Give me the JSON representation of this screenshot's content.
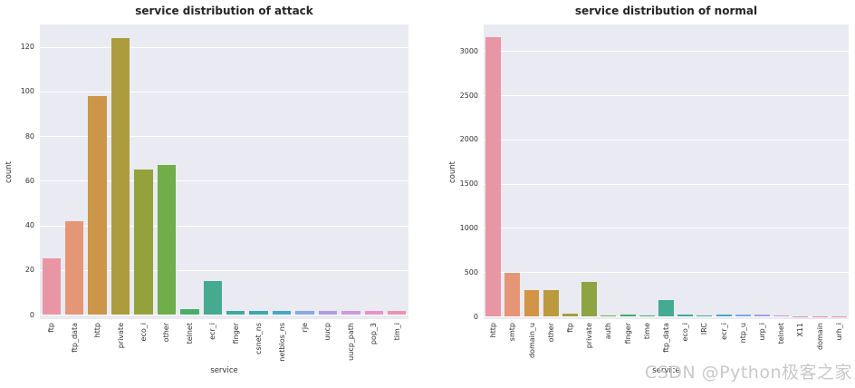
{
  "page": {
    "watermark": "CSDN @Python极客之家"
  },
  "chart_data": [
    {
      "type": "bar",
      "title": "service distribution of attack",
      "xlabel": "service",
      "ylabel": "count",
      "categories": [
        "ftp",
        "ftp_data",
        "http",
        "private",
        "eco_i",
        "other",
        "telnet",
        "ecr_i",
        "finger",
        "csnet_ns",
        "netbios_ns",
        "rje",
        "uucp",
        "uucp_path",
        "pop_3",
        "tim_i"
      ],
      "values": [
        25,
        42,
        98,
        124,
        65,
        67,
        2.5,
        15,
        1.5,
        1.5,
        1.5,
        1.5,
        1.5,
        1.5,
        1.5,
        1.5
      ],
      "bar_colors": [
        "#e996a4",
        "#e59677",
        "#cb9648",
        "#ac9c3e",
        "#94a23d",
        "#6fae4b",
        "#4bae68",
        "#46ab8e",
        "#40a9a0",
        "#3fa6ae",
        "#4aa6c6",
        "#8aa7e2",
        "#b09ce2",
        "#cf97dd",
        "#e692cd",
        "#e995b0"
      ],
      "yticks": [
        0,
        20,
        40,
        60,
        80,
        100,
        120
      ],
      "ylim": [
        0,
        130
      ],
      "grid": true,
      "plot_bg": "#eaeaf2",
      "legend": "none"
    },
    {
      "type": "bar",
      "title": "service distribution of normal",
      "xlabel": "service",
      "ylabel": "count",
      "categories": [
        "http",
        "smtp",
        "domain_u",
        "other",
        "ftp",
        "private",
        "auth",
        "finger",
        "time",
        "ftp_data",
        "eco_i",
        "IRC",
        "ecr_i",
        "ntp_u",
        "urp_i",
        "telnet",
        "X11",
        "domain",
        "urh_i"
      ],
      "values": [
        3160,
        490,
        295,
        295,
        35,
        390,
        15,
        22,
        6,
        185,
        20,
        6,
        22,
        22,
        22,
        14,
        4,
        3,
        3
      ],
      "bar_colors": [
        "#e996a4",
        "#e59677",
        "#d29545",
        "#bb9a3e",
        "#a69e3d",
        "#8ea343",
        "#64ad4e",
        "#3dac63",
        "#3fab7e",
        "#42ab92",
        "#3fa9a1",
        "#3fa6af",
        "#4aa5c5",
        "#7fa8e1",
        "#a89de2",
        "#c497de",
        "#dc92d6",
        "#e791c4",
        "#e995ac"
      ],
      "yticks": [
        0,
        500,
        1000,
        1500,
        2000,
        2500,
        3000
      ],
      "ylim": [
        0,
        3300
      ],
      "grid": true,
      "plot_bg": "#eaeaf2",
      "legend": "none"
    }
  ]
}
